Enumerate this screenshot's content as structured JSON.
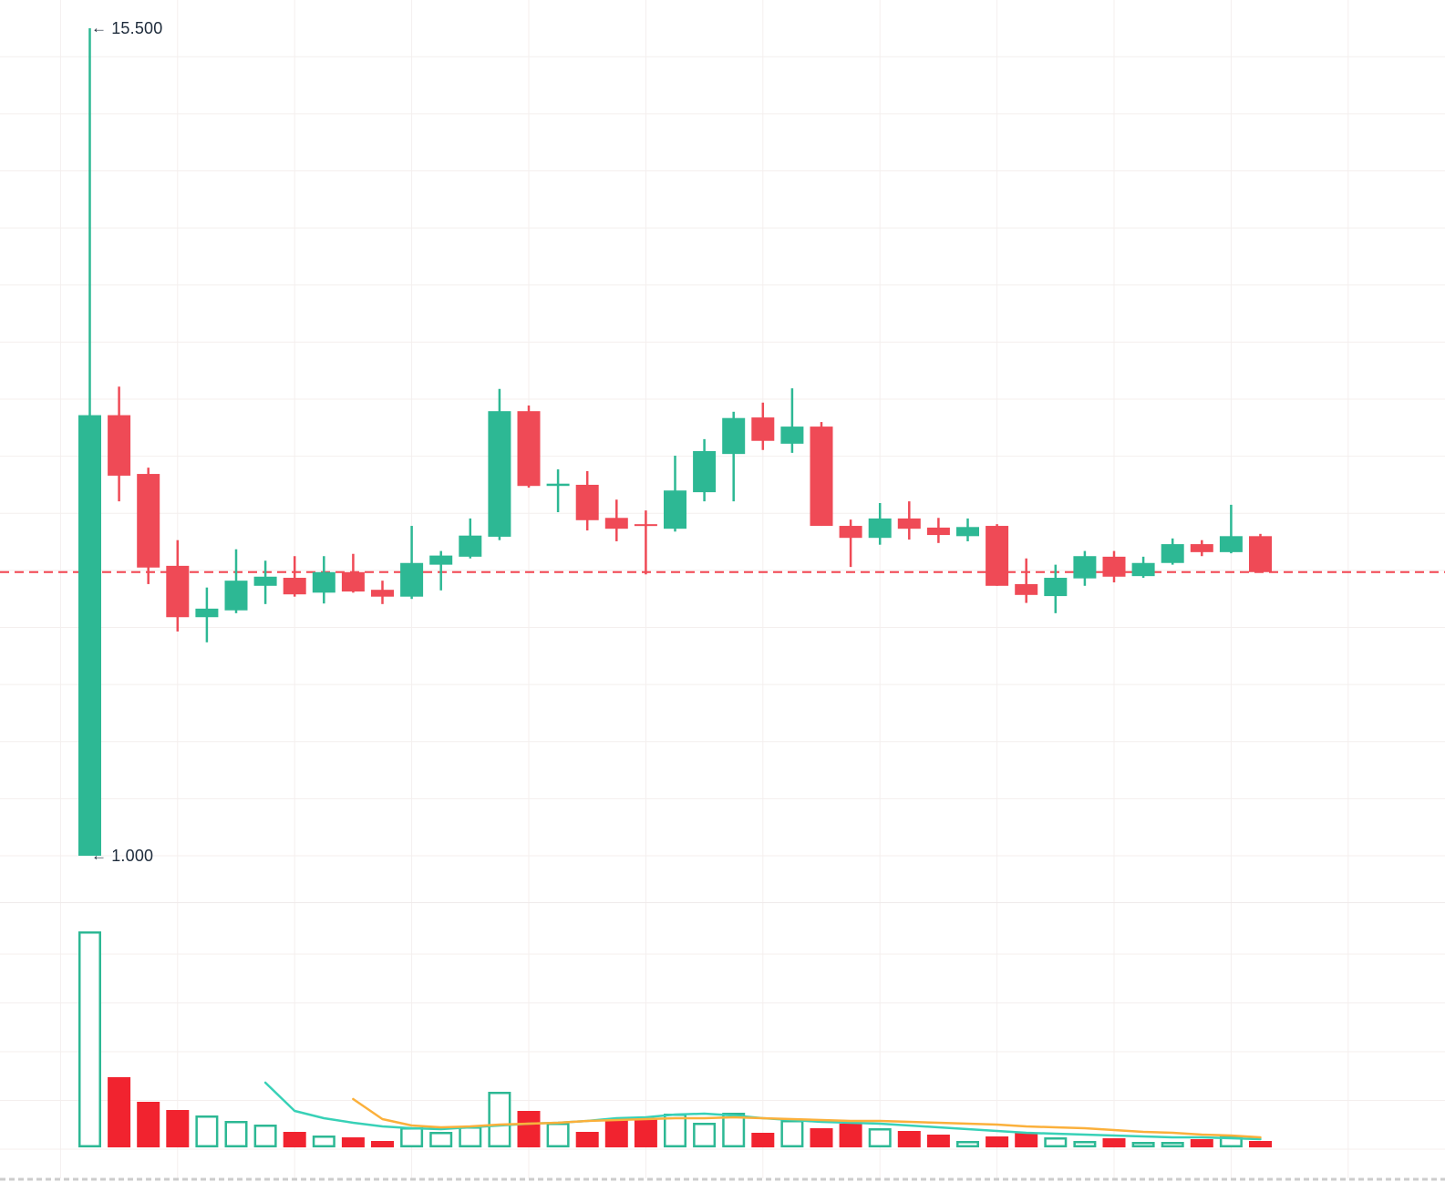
{
  "chart": {
    "high_label": {
      "arrow": "←",
      "text": "15.500"
    },
    "low_label": {
      "arrow": "←",
      "text": "1.000"
    }
  },
  "colors": {
    "background": "#ffffff",
    "grid": "#f4efee",
    "pane_separator": "#efeaea",
    "up": "#2db894",
    "down": "#ef4a56",
    "volume_up_outline": "#2db894",
    "volume_up_fill": "#ffffff",
    "volume_down": "#f1232f",
    "ma_fast": "#38d1b7",
    "ma_slow": "#fbb03b",
    "price_line": "#f24450",
    "label_text": "#1e2b3b",
    "bottom_separator": "#cccccc"
  },
  "chart_data": {
    "type": "candlestick_with_volume",
    "title": "",
    "price_axis": {
      "labels_visible": false,
      "grid_step": 1.0,
      "marked_high": 15.5,
      "marked_low": 1.0,
      "range_top": 16.0,
      "range_bottom": 0.5
    },
    "x_axis": {
      "labels_visible": false,
      "candle_count": 41,
      "grid_every_n_candles": 4
    },
    "price_line": {
      "value": 5.97,
      "style": "dashed"
    },
    "volume_axis": {
      "labels_visible": false,
      "units": "relative"
    },
    "columns": [
      "open",
      "high",
      "low",
      "close",
      "volume_rel"
    ],
    "candles": [
      [
        1.0,
        15.5,
        1.0,
        8.72,
        237
      ],
      [
        8.72,
        9.22,
        7.21,
        7.66,
        77
      ],
      [
        7.69,
        7.8,
        5.76,
        6.05,
        50
      ],
      [
        6.08,
        6.53,
        4.93,
        5.18,
        41
      ],
      [
        5.18,
        5.7,
        4.74,
        5.33,
        35
      ],
      [
        5.3,
        6.37,
        5.25,
        5.82,
        29
      ],
      [
        5.73,
        6.17,
        5.41,
        5.89,
        25
      ],
      [
        5.87,
        6.25,
        5.54,
        5.58,
        17
      ],
      [
        5.61,
        6.25,
        5.42,
        5.97,
        13
      ],
      [
        5.97,
        6.29,
        5.61,
        5.63,
        11
      ],
      [
        5.66,
        5.82,
        5.41,
        5.54,
        7
      ],
      [
        5.54,
        6.78,
        5.5,
        6.13,
        22
      ],
      [
        6.1,
        6.34,
        5.65,
        6.26,
        17
      ],
      [
        6.24,
        6.91,
        6.21,
        6.61,
        23
      ],
      [
        6.59,
        9.18,
        6.53,
        8.79,
        61
      ],
      [
        8.79,
        8.89,
        7.45,
        7.48,
        40
      ],
      [
        7.48,
        7.77,
        7.02,
        7.52,
        27
      ],
      [
        7.5,
        7.74,
        6.7,
        6.88,
        17
      ],
      [
        6.92,
        7.24,
        6.51,
        6.73,
        32
      ],
      [
        6.81,
        7.05,
        5.93,
        6.78,
        31
      ],
      [
        6.73,
        8.01,
        6.68,
        7.4,
        37
      ],
      [
        7.37,
        8.3,
        7.21,
        8.09,
        27
      ],
      [
        8.04,
        8.78,
        7.21,
        8.67,
        38
      ],
      [
        8.68,
        8.94,
        8.11,
        8.27,
        16
      ],
      [
        8.22,
        9.19,
        8.06,
        8.52,
        30
      ],
      [
        8.52,
        8.6,
        6.78,
        6.78,
        21
      ],
      [
        6.78,
        6.89,
        6.06,
        6.57,
        26
      ],
      [
        6.57,
        7.18,
        6.45,
        6.91,
        21
      ],
      [
        6.91,
        7.21,
        6.54,
        6.73,
        18
      ],
      [
        6.75,
        6.92,
        6.48,
        6.62,
        14
      ],
      [
        6.6,
        6.91,
        6.51,
        6.76,
        7
      ],
      [
        6.78,
        6.81,
        5.73,
        5.73,
        12
      ],
      [
        5.76,
        6.21,
        5.43,
        5.57,
        16
      ],
      [
        5.55,
        6.1,
        5.25,
        5.87,
        11
      ],
      [
        5.86,
        6.34,
        5.73,
        6.25,
        7
      ],
      [
        6.24,
        6.34,
        5.79,
        5.89,
        10
      ],
      [
        5.9,
        6.24,
        5.87,
        6.13,
        6
      ],
      [
        6.13,
        6.56,
        6.1,
        6.46,
        6
      ],
      [
        6.46,
        6.53,
        6.25,
        6.32,
        9
      ],
      [
        6.32,
        7.15,
        6.3,
        6.6,
        13
      ],
      [
        6.6,
        6.64,
        5.97,
        5.97,
        7
      ]
    ],
    "volume_ma": [
      {
        "name": "volume-ma-fast",
        "start_index": 6,
        "values": [
          71,
          40,
          32,
          27,
          23,
          21,
          20,
          22,
          24,
          26,
          27,
          29,
          32,
          33,
          36,
          37,
          35,
          32,
          30,
          28,
          27,
          26,
          24,
          22,
          20,
          18,
          16,
          15,
          14,
          13,
          12,
          11,
          11,
          10,
          9
        ]
      },
      {
        "name": "volume-ma-slow",
        "start_index": 9,
        "values": [
          53,
          31,
          24,
          22,
          23,
          25,
          26,
          27,
          29,
          30,
          31,
          32,
          32,
          33,
          32,
          31,
          30,
          29,
          29,
          28,
          27,
          26,
          25,
          23,
          22,
          21,
          19,
          17,
          16,
          14,
          13,
          11
        ]
      }
    ]
  }
}
